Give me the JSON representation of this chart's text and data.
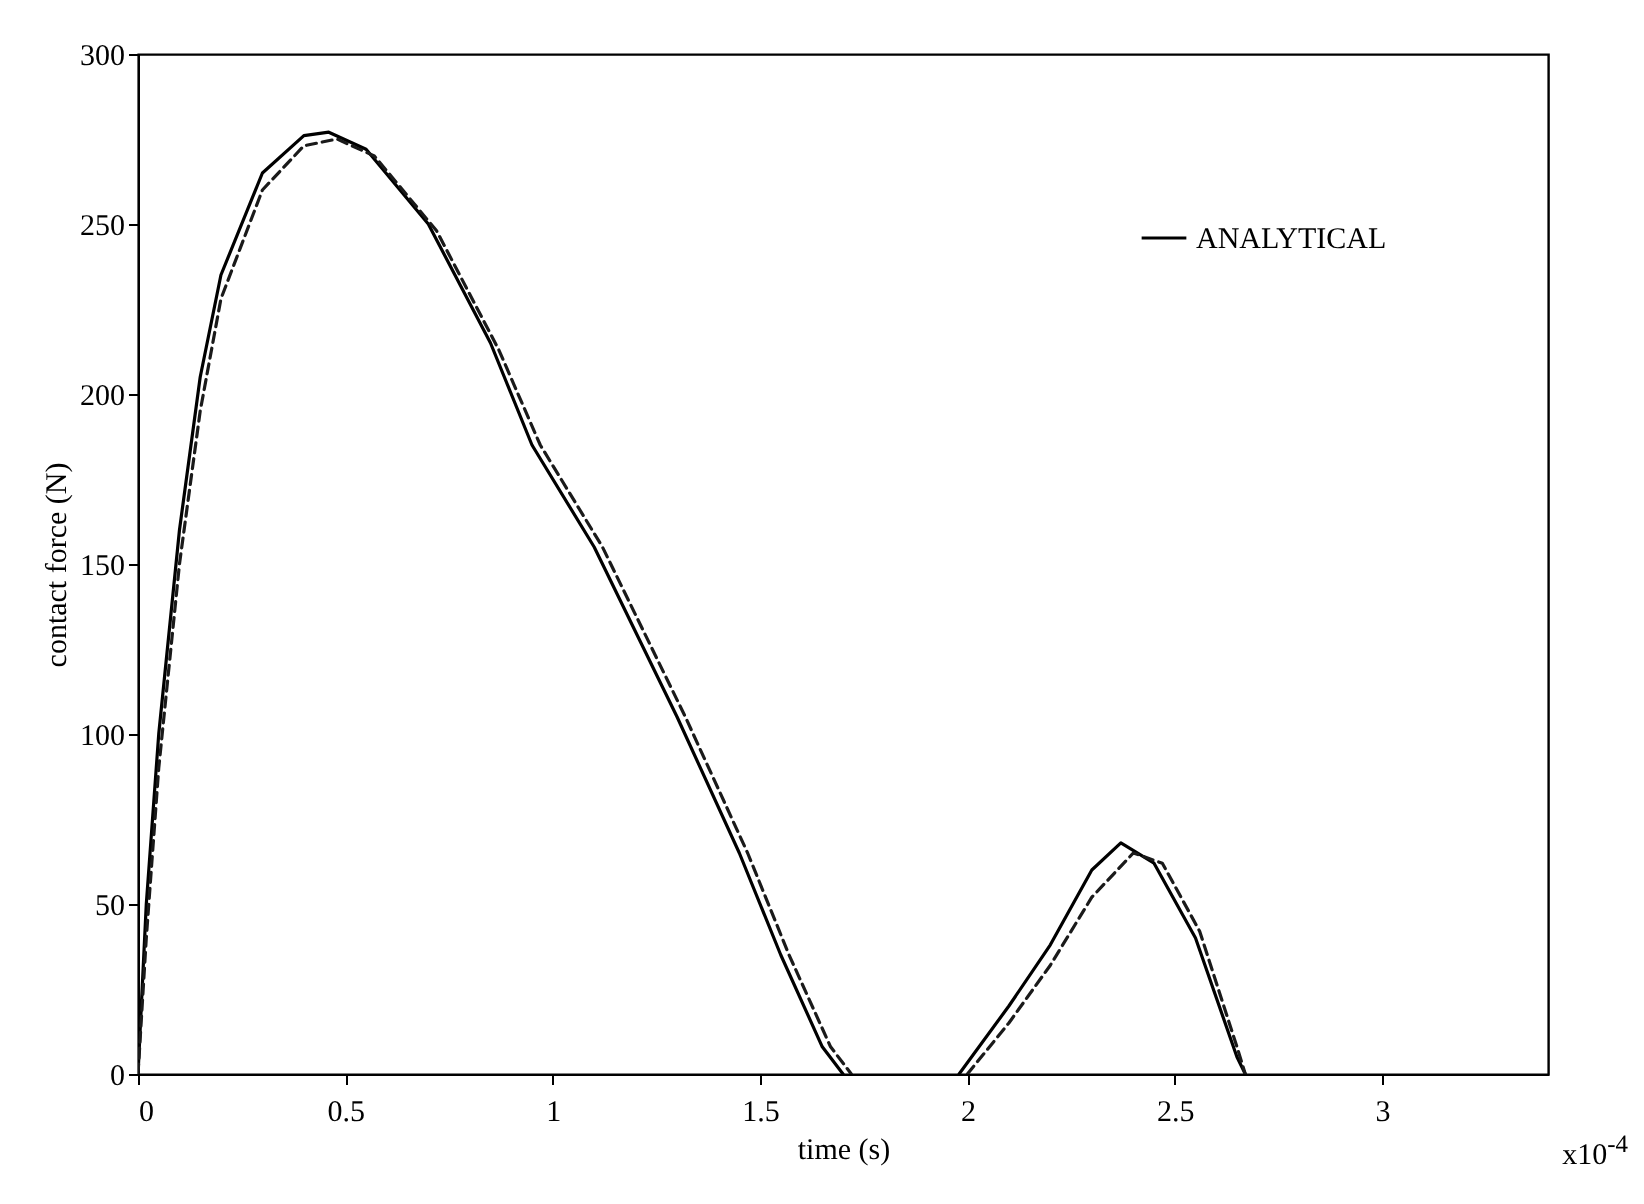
{
  "chart_data": {
    "type": "line",
    "xlabel": "time (s)",
    "ylabel": "contact force (N)",
    "annotations": [
      "x10$^{-4}$"
    ],
    "xlim": [
      0,
      3.4
    ],
    "ylim": [
      0,
      300
    ],
    "xticks": [
      0,
      0.5,
      1,
      1.5,
      2,
      2.5,
      3
    ],
    "yticks": [
      0,
      50,
      100,
      150,
      200,
      250,
      300
    ],
    "grid": false,
    "legend": "top right",
    "marker": "none",
    "series": [
      {
        "name": "ANALYTICAL",
        "color": "#000000",
        "line_style": "solid",
        "x": [
          0,
          0.02,
          0.05,
          0.1,
          0.15,
          0.2,
          0.3,
          0.4,
          0.46,
          0.55,
          0.7,
          0.85,
          0.95,
          1.1,
          1.3,
          1.45,
          1.55,
          1.65,
          1.7,
          1.85,
          1.98,
          2.1,
          2.2,
          2.3,
          2.37,
          2.45,
          2.55,
          2.65,
          2.67
        ],
        "values": [
          0,
          50,
          100,
          160,
          205,
          235,
          265,
          276,
          277,
          272,
          250,
          215,
          185,
          155,
          105,
          65,
          35,
          8,
          0,
          null,
          0,
          20,
          38,
          60,
          68,
          62,
          40,
          5,
          0
        ]
      },
      {
        "color": "#1a1a1a",
        "line_style": "dashed",
        "x": [
          0,
          0.02,
          0.05,
          0.1,
          0.15,
          0.2,
          0.3,
          0.4,
          0.48,
          0.57,
          0.72,
          0.87,
          0.97,
          1.12,
          1.32,
          1.47,
          1.57,
          1.67,
          1.72,
          1.85,
          2.0,
          2.1,
          2.2,
          2.3,
          2.4,
          2.47,
          2.56,
          2.65,
          2.67
        ],
        "values": [
          0,
          40,
          90,
          150,
          195,
          228,
          260,
          273,
          275,
          270,
          248,
          213,
          185,
          155,
          105,
          65,
          35,
          8,
          0,
          null,
          0,
          15,
          32,
          52,
          65,
          62,
          42,
          8,
          0
        ]
      }
    ]
  }
}
